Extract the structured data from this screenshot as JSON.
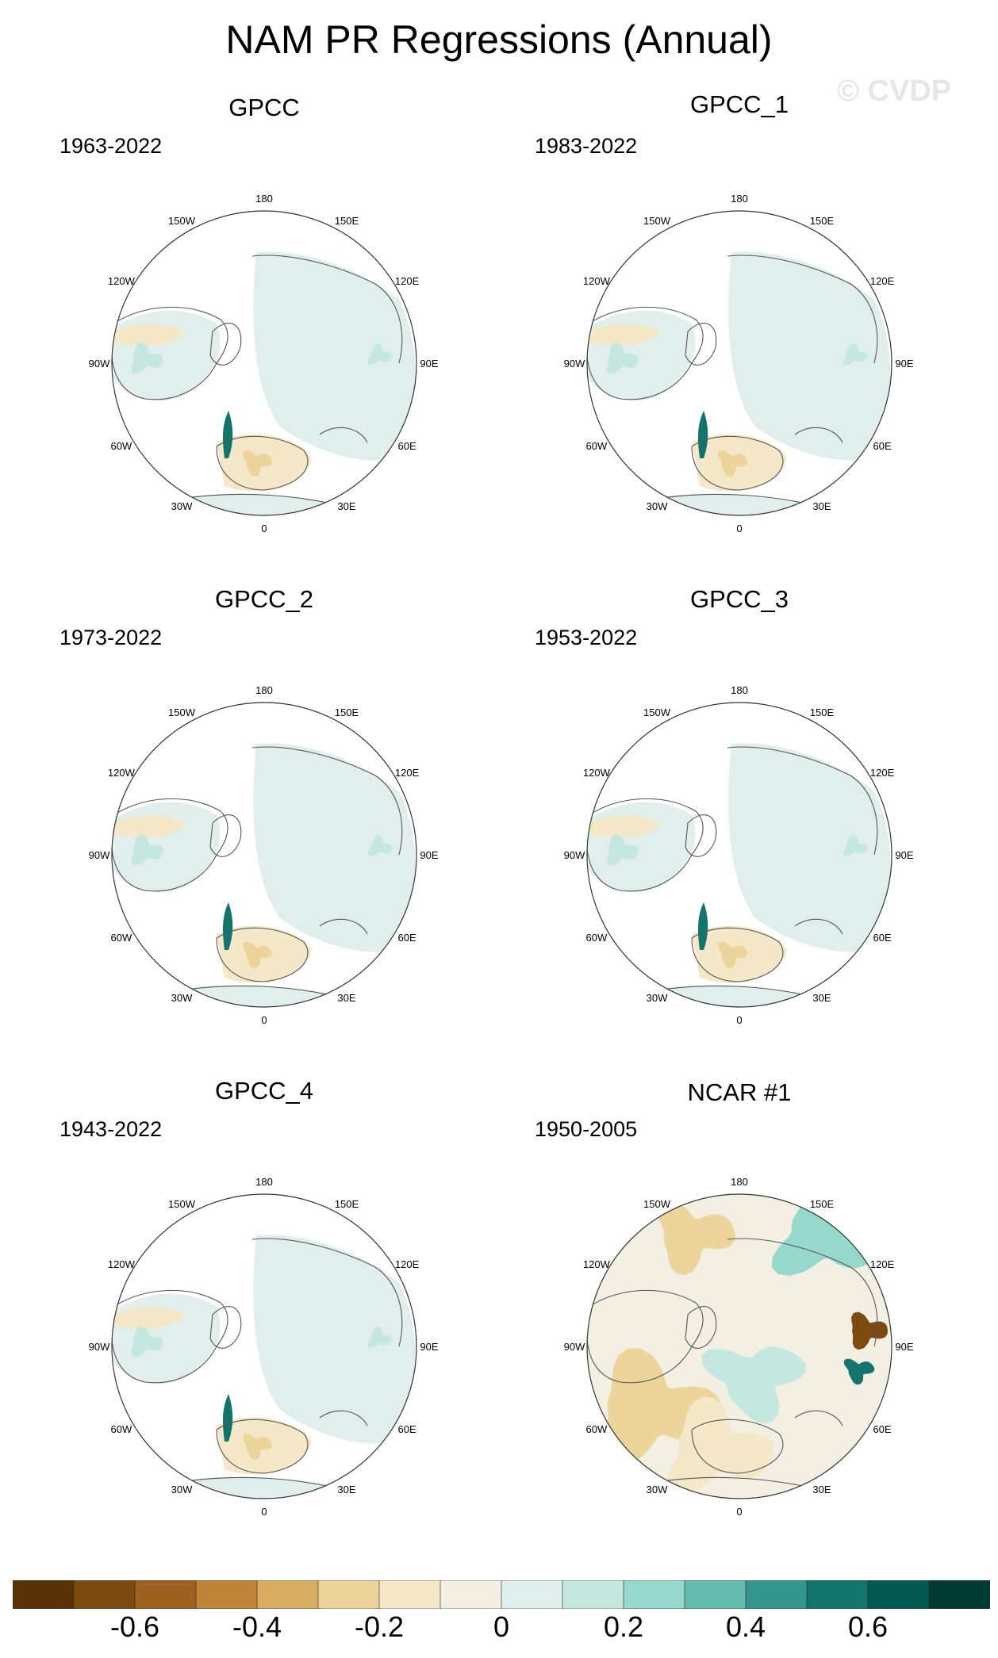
{
  "title": "NAM PR Regressions (Annual)",
  "watermark": "© CVDP",
  "panels": [
    {
      "name": "GPCC",
      "years": "1963-2022",
      "variant": "obs"
    },
    {
      "name": "GPCC_1",
      "years": "1983-2022",
      "variant": "obs"
    },
    {
      "name": "GPCC_2",
      "years": "1973-2022",
      "variant": "obs"
    },
    {
      "name": "GPCC_3",
      "years": "1953-2022",
      "variant": "obs"
    },
    {
      "name": "GPCC_4",
      "years": "1943-2022",
      "variant": "obs"
    },
    {
      "name": "NCAR #1",
      "years": "1950-2005",
      "variant": "model"
    }
  ],
  "longitude_labels": [
    "180",
    "150E",
    "120E",
    "90E",
    "60E",
    "30E",
    "0",
    "30W",
    "60W",
    "90W",
    "120W",
    "150W"
  ],
  "colorbar": {
    "colors": [
      "#5a3208",
      "#7d4a10",
      "#9e6120",
      "#c08538",
      "#d8ac60",
      "#ecd49a",
      "#f5e8c8",
      "#f3efe3",
      "#e0efeb",
      "#c4e8e0",
      "#96d8cc",
      "#64bcae",
      "#33968c",
      "#13746c",
      "#005a50",
      "#003b33"
    ],
    "tick_labels": [
      "-0.6",
      "-0.4",
      "-0.2",
      "0",
      "0.2",
      "0.4",
      "0.6"
    ]
  }
}
